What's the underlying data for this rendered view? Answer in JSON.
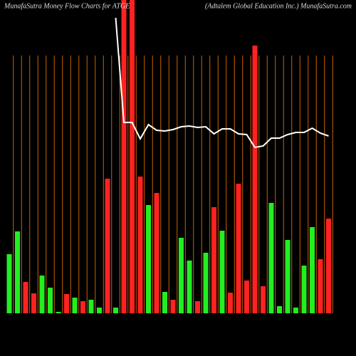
{
  "chart_data": {
    "type": "bar",
    "title": "MunafaSutra  Money Flow  Charts for ATGE",
    "subtitle": "(Adtalem Global Education Inc.) MunafaSutra.com",
    "values": [
      83,
      115,
      44,
      28,
      53,
      36,
      2,
      27,
      22,
      17,
      19,
      8,
      189,
      8,
      440,
      440,
      192,
      152,
      169,
      30,
      19,
      106,
      74,
      17,
      85,
      149,
      116,
      29,
      182,
      46,
      376,
      38,
      155,
      10,
      103,
      8,
      67,
      121,
      76,
      133
    ],
    "colors": [
      "#22ee22",
      "#22ee22",
      "#ff2222",
      "#ff2222",
      "#22ee22",
      "#22ee22",
      "#22ee22",
      "#ff2222",
      "#22ee22",
      "#ff2222",
      "#22ee22",
      "#22ee22",
      "#ff2222",
      "#22ee22",
      "#ff2222",
      "#ff2222",
      "#ff2222",
      "#22ee22",
      "#ff2222",
      "#22ee22",
      "#ff2222",
      "#22ee22",
      "#22ee22",
      "#ff2222",
      "#22ee22",
      "#ff2222",
      "#22ee22",
      "#ff2222",
      "#ff2222",
      "#ff2222",
      "#ff2222",
      "#ff2222",
      "#22ee22",
      "#22ee22",
      "#22ee22",
      "#22ee22",
      "#22ee22",
      "#22ee22",
      "#ff2222",
      "#ff2222"
    ],
    "line": {
      "color": "#ffffff",
      "values": [
        null,
        null,
        null,
        null,
        null,
        null,
        null,
        null,
        null,
        null,
        null,
        null,
        null,
        415,
        268,
        268,
        245,
        265,
        257,
        256,
        258,
        262,
        263,
        261,
        262,
        252,
        259,
        259,
        252,
        251,
        233,
        235,
        246,
        246,
        251,
        254,
        254,
        260,
        253,
        249
      ]
    },
    "ylim": [
      0,
      440
    ],
    "grid_color": "#c86400"
  }
}
